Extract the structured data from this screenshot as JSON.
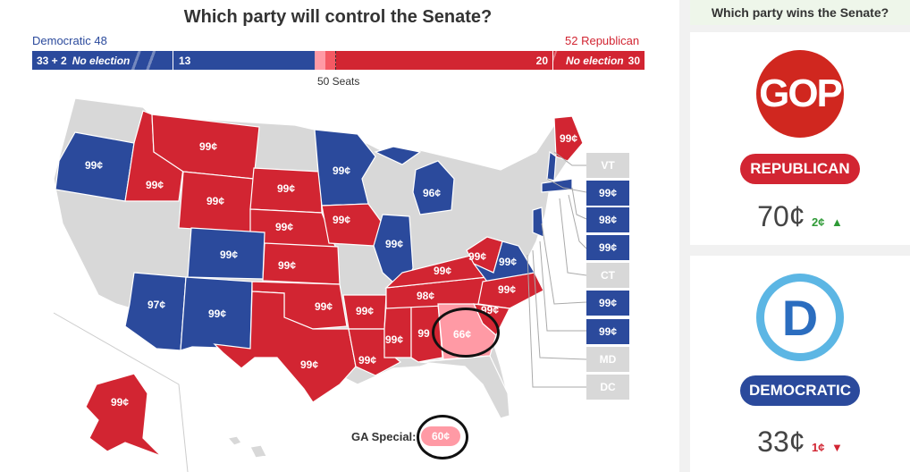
{
  "title": "Which party will control the Senate?",
  "democratic_label": "Democratic 48",
  "republican_label": "52 Republican",
  "bar": {
    "dem_no_election_count": "33 + 2",
    "dem_no_election_label": "No election",
    "dem_seats": "13",
    "rep_seats": "20",
    "rep_no_election_label": "No election",
    "rep_no_election_count": "30"
  },
  "fifty_seats": "50 Seats",
  "colors": {
    "dem_blue": "#2b4a9c",
    "rep_red": "#d22532",
    "lean_rep_pink": "#ff9aa5",
    "no_election_grey": "#d8d8d8"
  },
  "state_prices": [
    {
      "name": "oregon",
      "label": "99¢"
    },
    {
      "name": "idaho",
      "label": "99¢"
    },
    {
      "name": "montana",
      "label": "99¢"
    },
    {
      "name": "wyoming",
      "label": "99¢"
    },
    {
      "name": "south-dakota",
      "label": "99¢"
    },
    {
      "name": "nebraska",
      "label": "99¢"
    },
    {
      "name": "minnesota",
      "label": "99¢"
    },
    {
      "name": "iowa",
      "label": "99¢"
    },
    {
      "name": "michigan",
      "label": "96¢"
    },
    {
      "name": "illinois",
      "label": "99¢"
    },
    {
      "name": "colorado",
      "label": "99¢"
    },
    {
      "name": "kansas",
      "label": "99¢"
    },
    {
      "name": "arizona",
      "label": "97¢"
    },
    {
      "name": "new-mexico",
      "label": "99¢"
    },
    {
      "name": "oklahoma",
      "label": "99¢"
    },
    {
      "name": "arkansas",
      "label": "99¢"
    },
    {
      "name": "texas",
      "label": "99¢"
    },
    {
      "name": "louisiana",
      "label": "99¢"
    },
    {
      "name": "mississippi",
      "label": "99¢"
    },
    {
      "name": "alabama",
      "label": "99"
    },
    {
      "name": "georgia",
      "label": "66¢"
    },
    {
      "name": "south-carolina",
      "label": "99¢"
    },
    {
      "name": "north-carolina",
      "label": "99¢"
    },
    {
      "name": "tennessee",
      "label": "98¢"
    },
    {
      "name": "kentucky",
      "label": "99¢"
    },
    {
      "name": "west-virginia",
      "label": "99¢"
    },
    {
      "name": "virginia",
      "label": "99¢"
    },
    {
      "name": "maine",
      "label": "99¢"
    },
    {
      "name": "alaska",
      "label": "99¢"
    }
  ],
  "small_states": [
    {
      "abbr": "VT",
      "value": "VT",
      "party": "none"
    },
    {
      "abbr": "NH",
      "value": "99¢",
      "party": "dem"
    },
    {
      "abbr": "MA",
      "value": "98¢",
      "party": "dem"
    },
    {
      "abbr": "RI",
      "value": "99¢",
      "party": "dem"
    },
    {
      "abbr": "CT",
      "value": "CT",
      "party": "none"
    },
    {
      "abbr": "NJ",
      "value": "99¢",
      "party": "dem"
    },
    {
      "abbr": "DE",
      "value": "99¢",
      "party": "dem"
    },
    {
      "abbr": "MD",
      "value": "MD",
      "party": "none"
    },
    {
      "abbr": "DC",
      "value": "DC",
      "party": "none"
    }
  ],
  "ga_special": {
    "label": "GA Special:",
    "value": "60¢"
  },
  "sidebar": {
    "header": "Which party wins the Senate?",
    "republican": {
      "logo_text": "GOP",
      "name": "REPUBLICAN",
      "price": "70¢",
      "change": "2¢",
      "direction": "up-arrow-icon"
    },
    "democratic": {
      "logo_text": "D",
      "name": "DEMOCRATIC",
      "price": "33¢",
      "change": "1¢",
      "direction": "down-arrow-icon"
    }
  }
}
